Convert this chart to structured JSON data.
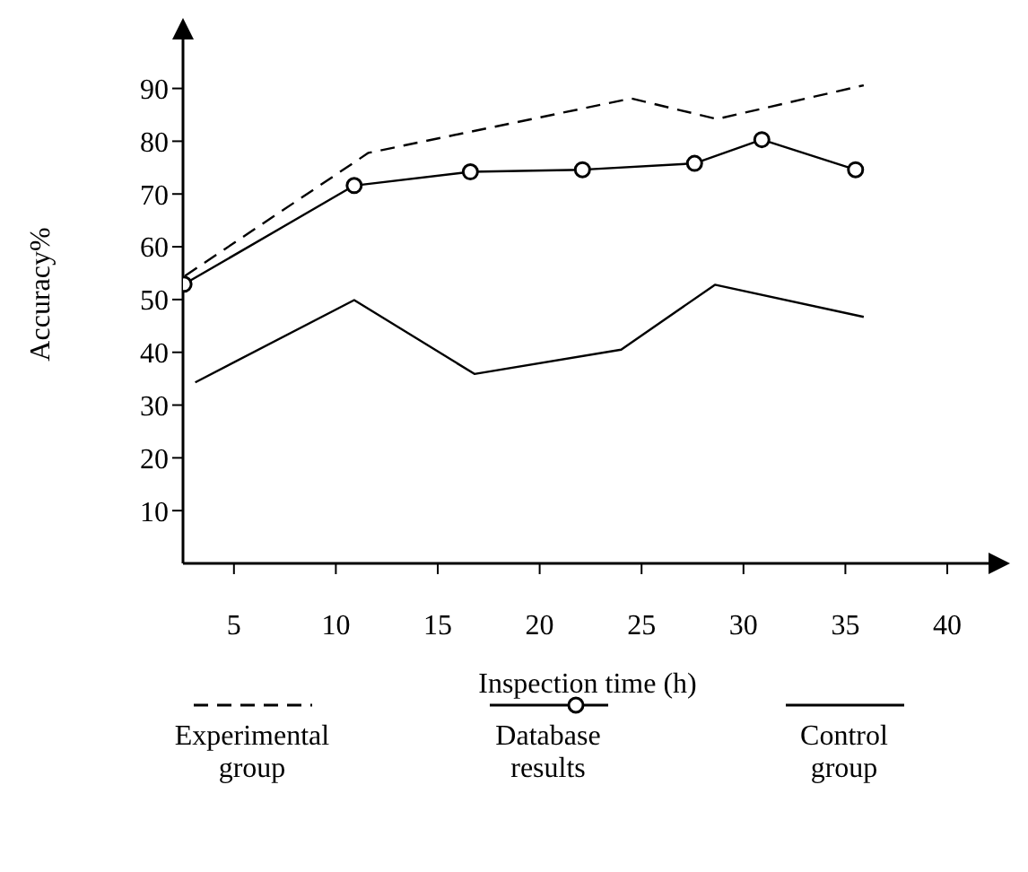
{
  "chart_data": {
    "type": "line",
    "xlabel": "Inspection time (h)",
    "ylabel": "Accuracy%",
    "xlim": [
      2.5,
      42.2
    ],
    "xticks": [
      5,
      10,
      15,
      20,
      25,
      30,
      35,
      40
    ],
    "ylim": [
      0,
      102
    ],
    "yticks": [
      10,
      20,
      30,
      40,
      50,
      60,
      70,
      80,
      90
    ],
    "legend": "bottom",
    "series": [
      {
        "name": "Experimental group",
        "color": "#000000",
        "line_style": "dashed",
        "marker": "none",
        "x": [
          2.6,
          11.6,
          24.5,
          28.7,
          35.9
        ],
        "values": [
          54.5,
          77.8,
          88.1,
          84.2,
          90.6
        ]
      },
      {
        "name": "Database results",
        "color": "#000000",
        "line_style": "solid",
        "marker": "circle",
        "x": [
          2.55,
          10.9,
          16.6,
          22.1,
          27.6,
          30.9,
          35.5
        ],
        "values": [
          52.9,
          71.6,
          74.2,
          74.6,
          75.8,
          80.3,
          74.6
        ]
      },
      {
        "name": "Control group",
        "color": "#000000",
        "line_style": "solid",
        "marker": "none",
        "x": [
          3.1,
          10.9,
          16.8,
          24.0,
          28.6,
          35.9
        ],
        "values": [
          34.3,
          49.9,
          35.9,
          40.5,
          52.8,
          46.7
        ]
      }
    ]
  }
}
